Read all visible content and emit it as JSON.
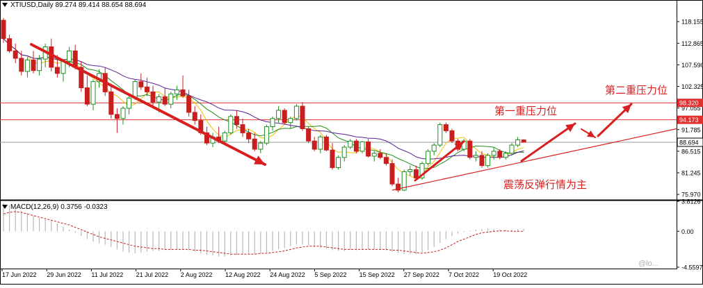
{
  "header": {
    "symbol_line": "XTIUSD,Daily  89.274 89.414 88.654 88.694",
    "macd_line": "MACD(12,26,9) 0.3756 -0.0323"
  },
  "annotations": {
    "resistance_2": "第二重压力位",
    "resistance_1": "第一重压力位",
    "range_note": "震荡反弹行情为主"
  },
  "watermark": "@lo...",
  "colors": {
    "bull": "#1e8c1e",
    "bear": "#c81e1e",
    "ma_fast": "#f0c000",
    "ma_mid": "#1e8c1e",
    "ma_slow": "#5a1e96",
    "annotation": "#d81e1e",
    "price_box": "#e03030"
  },
  "chart_data": [
    {
      "type": "candlestick",
      "title": "XTIUSD,Daily",
      "ohlc_current": {
        "open": 89.274,
        "high": 89.414,
        "low": 88.654,
        "close": 88.694
      },
      "y_ticks": [
        "118.155",
        "112.865",
        "107.590",
        "102.325",
        "97.055",
        "91.785",
        "86.515",
        "81.245",
        "75.970"
      ],
      "ylim": [
        74.8,
        121.4
      ],
      "x_ticks": [
        "17 Jun 2022",
        "29 Jun 2022",
        "11 Jul 2022",
        "21 Jul 2022",
        "2 Aug 2022",
        "12 Aug 2022",
        "24 Aug 2022",
        "5 Sep 2022",
        "15 Sep 2022",
        "27 Sep 2022",
        "7 Oct 2022",
        "19 Oct 2022"
      ],
      "horizontal_levels": [
        {
          "price": 98.32,
          "label": "98.320",
          "color": "#e03030"
        },
        {
          "price": 94.173,
          "label": "94.173",
          "color": "#e03030"
        },
        {
          "price": 88.694,
          "label": "88.694",
          "color": "#000000"
        }
      ],
      "candles": [
        [
          118.5,
          119.0,
          113.0,
          114.0
        ],
        [
          114.0,
          115.0,
          110.5,
          111.0
        ],
        [
          111.0,
          112.8,
          108.0,
          109.2
        ],
        [
          109.2,
          111.0,
          105.0,
          106.0
        ],
        [
          106.0,
          109.5,
          104.5,
          108.8
        ],
        [
          108.8,
          111.0,
          105.5,
          106.2
        ],
        [
          106.2,
          110.0,
          105.0,
          109.0
        ],
        [
          109.0,
          112.8,
          107.0,
          112.0
        ],
        [
          112.0,
          114.0,
          106.0,
          107.0
        ],
        [
          107.0,
          110.0,
          104.5,
          105.5
        ],
        [
          105.5,
          109.0,
          103.5,
          108.5
        ],
        [
          108.5,
          112.0,
          107.0,
          111.0
        ],
        [
          111.0,
          112.5,
          106.5,
          107.0
        ],
        [
          107.0,
          108.5,
          101.0,
          102.0
        ],
        [
          102.0,
          105.0,
          97.5,
          98.0
        ],
        [
          98.0,
          104.0,
          96.5,
          103.5
        ],
        [
          103.5,
          106.5,
          102.0,
          105.5
        ],
        [
          105.5,
          107.0,
          100.0,
          101.0
        ],
        [
          101.0,
          103.0,
          94.5,
          95.5
        ],
        [
          95.5,
          97.0,
          91.0,
          94.5
        ],
        [
          94.5,
          97.5,
          93.0,
          97.0
        ],
        [
          97.0,
          100.0,
          95.5,
          99.5
        ],
        [
          99.5,
          104.0,
          99.0,
          103.5
        ],
        [
          103.5,
          105.5,
          101.5,
          102.2
        ],
        [
          102.2,
          104.5,
          100.0,
          101.0
        ],
        [
          101.0,
          102.5,
          97.5,
          98.5
        ],
        [
          98.5,
          100.5,
          96.0,
          99.8
        ],
        [
          99.8,
          102.0,
          97.5,
          98.0
        ],
        [
          98.0,
          101.0,
          97.0,
          100.5
        ],
        [
          100.5,
          102.5,
          99.0,
          101.5
        ],
        [
          101.5,
          105.0,
          99.5,
          100.0
        ],
        [
          100.0,
          101.5,
          95.0,
          96.0
        ],
        [
          96.0,
          97.5,
          93.0,
          94.0
        ],
        [
          94.0,
          95.5,
          90.5,
          91.0
        ],
        [
          91.0,
          92.5,
          88.0,
          88.5
        ],
        [
          88.5,
          91.0,
          87.5,
          90.0
        ],
        [
          90.0,
          92.5,
          88.5,
          89.0
        ],
        [
          89.0,
          91.5,
          88.0,
          91.0
        ],
        [
          91.0,
          95.5,
          90.5,
          95.0
        ],
        [
          95.0,
          96.5,
          92.0,
          93.0
        ],
        [
          93.0,
          94.5,
          90.0,
          91.0
        ],
        [
          91.0,
          92.0,
          88.5,
          89.5
        ],
        [
          89.5,
          91.0,
          86.5,
          87.0
        ],
        [
          87.0,
          89.0,
          86.0,
          88.5
        ],
        [
          88.5,
          93.0,
          88.0,
          92.5
        ],
        [
          92.5,
          95.0,
          91.5,
          94.5
        ],
        [
          94.5,
          97.5,
          93.5,
          96.5
        ],
        [
          96.5,
          97.0,
          93.0,
          93.5
        ],
        [
          93.5,
          95.0,
          92.0,
          94.5
        ],
        [
          94.5,
          98.0,
          94.0,
          97.5
        ],
        [
          97.5,
          98.5,
          91.5,
          92.0
        ],
        [
          92.0,
          92.5,
          88.5,
          89.0
        ],
        [
          89.0,
          90.0,
          86.5,
          87.0
        ],
        [
          87.0,
          90.5,
          86.0,
          90.0
        ],
        [
          90.0,
          90.5,
          86.5,
          86.8
        ],
        [
          86.8,
          88.5,
          82.0,
          82.5
        ],
        [
          82.5,
          85.5,
          82.0,
          85.0
        ],
        [
          85.0,
          88.0,
          84.0,
          87.5
        ],
        [
          87.5,
          89.5,
          87.0,
          89.0
        ],
        [
          89.0,
          89.5,
          86.0,
          86.5
        ],
        [
          86.5,
          89.0,
          86.0,
          88.8
        ],
        [
          88.8,
          89.5,
          85.0,
          85.3
        ],
        [
          85.3,
          86.5,
          84.0,
          86.0
        ],
        [
          86.0,
          87.0,
          84.5,
          85.0
        ],
        [
          85.0,
          86.0,
          83.0,
          83.5
        ],
        [
          83.5,
          84.5,
          78.0,
          78.5
        ],
        [
          78.5,
          80.0,
          76.5,
          77.0
        ],
        [
          77.0,
          82.0,
          76.8,
          81.5
        ],
        [
          81.5,
          83.0,
          80.5,
          82.0
        ],
        [
          82.0,
          83.0,
          79.5,
          80.0
        ],
        [
          80.0,
          84.0,
          79.5,
          83.5
        ],
        [
          83.5,
          87.0,
          83.0,
          86.5
        ],
        [
          86.5,
          88.5,
          85.5,
          88.0
        ],
        [
          88.0,
          93.5,
          87.5,
          93.0
        ],
        [
          93.0,
          93.5,
          91.0,
          91.5
        ],
        [
          91.5,
          92.0,
          88.5,
          89.0
        ],
        [
          89.0,
          89.5,
          86.5,
          87.0
        ],
        [
          87.0,
          89.5,
          86.5,
          89.0
        ],
        [
          89.0,
          89.5,
          84.5,
          85.0
        ],
        [
          85.0,
          86.5,
          84.0,
          85.5
        ],
        [
          85.5,
          86.5,
          82.5,
          83.0
        ],
        [
          83.0,
          86.0,
          82.5,
          85.5
        ],
        [
          85.5,
          87.5,
          84.5,
          86.5
        ],
        [
          86.5,
          87.0,
          84.5,
          85.0
        ],
        [
          85.0,
          86.5,
          84.5,
          86.0
        ],
        [
          86.0,
          88.5,
          85.5,
          88.0
        ],
        [
          88.0,
          90.0,
          87.5,
          89.3
        ],
        [
          89.274,
          89.414,
          88.654,
          88.694
        ]
      ]
    },
    {
      "type": "macd",
      "title": "MACD(12,26,9)",
      "macd": 0.3756,
      "signal": -0.0323,
      "y_ticks": [
        "3.8126",
        "0.00",
        "-4.5597"
      ],
      "ylim": [
        -4.5597,
        3.8126
      ],
      "histogram": [
        3.6,
        3.3,
        3.0,
        2.6,
        2.3,
        2.0,
        1.7,
        1.5,
        1.3,
        1.0,
        0.6,
        0.2,
        -0.2,
        -0.6,
        -1.0,
        -1.3,
        -1.5,
        -1.7,
        -2.0,
        -2.3,
        -2.6,
        -2.7,
        -2.8,
        -2.7,
        -2.6,
        -2.5,
        -2.5,
        -2.4,
        -2.4,
        -2.3,
        -2.3,
        -2.4,
        -2.6,
        -2.8,
        -3.0,
        -3.1,
        -3.2,
        -3.2,
        -3.1,
        -3.0,
        -2.9,
        -2.9,
        -2.9,
        -2.8,
        -2.7,
        -2.5,
        -2.3,
        -2.1,
        -1.9,
        -1.7,
        -1.7,
        -1.8,
        -2.0,
        -2.1,
        -2.2,
        -2.4,
        -2.5,
        -2.5,
        -2.4,
        -2.4,
        -2.3,
        -2.3,
        -2.3,
        -2.3,
        -2.4,
        -2.6,
        -2.8,
        -2.9,
        -2.9,
        -2.9,
        -2.7,
        -2.4,
        -2.0,
        -1.5,
        -1.0,
        -0.6,
        -0.3,
        -0.1,
        0.1,
        0.2,
        0.3,
        0.35,
        0.3,
        0.25,
        0.2,
        0.25,
        0.3,
        0.3
      ],
      "signal_line": [
        2.2,
        2.4,
        2.5,
        2.4,
        2.2,
        2.0,
        1.8,
        1.6,
        1.4,
        1.2,
        1.0,
        0.8,
        0.5,
        0.2,
        -0.1,
        -0.4,
        -0.7,
        -0.9,
        -1.1,
        -1.3,
        -1.5,
        -1.7,
        -1.9,
        -2.0,
        -2.1,
        -2.2,
        -2.2,
        -2.3,
        -2.3,
        -2.3,
        -2.3,
        -2.3,
        -2.4,
        -2.4,
        -2.5,
        -2.6,
        -2.7,
        -2.8,
        -2.9,
        -2.9,
        -2.9,
        -2.9,
        -2.9,
        -2.8,
        -2.8,
        -2.7,
        -2.6,
        -2.5,
        -2.3,
        -2.1,
        -2.0,
        -1.9,
        -1.9,
        -1.9,
        -2.0,
        -2.1,
        -2.2,
        -2.3,
        -2.3,
        -2.3,
        -2.3,
        -2.3,
        -2.3,
        -2.3,
        -2.3,
        -2.4,
        -2.4,
        -2.5,
        -2.6,
        -2.7,
        -2.8,
        -2.7,
        -2.6,
        -2.4,
        -2.1,
        -1.7,
        -1.3,
        -1.0,
        -0.7,
        -0.4,
        -0.2,
        -0.1,
        0.0,
        0.05,
        0.05,
        0.0,
        0.0,
        0.0
      ]
    }
  ]
}
